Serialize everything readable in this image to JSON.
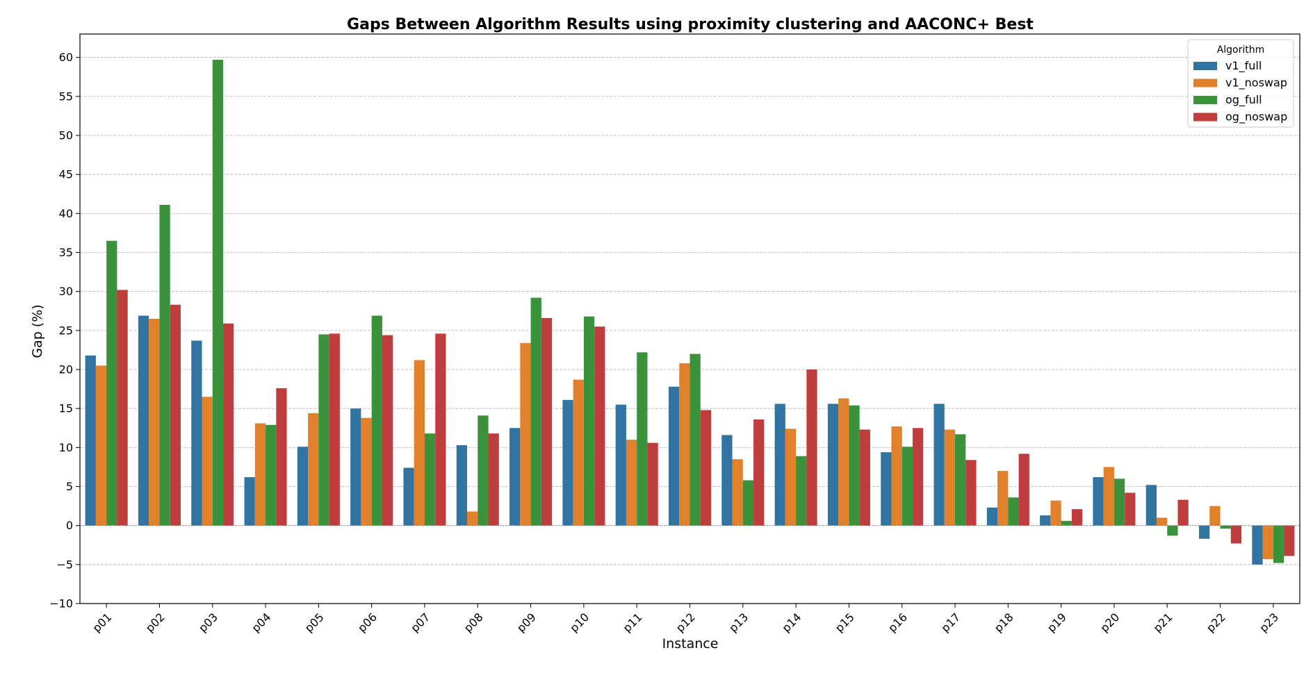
{
  "chart_data": {
    "type": "bar",
    "title": "Gaps Between Algorithm Results using proximity clustering and AACONC+ Best",
    "xlabel": "Instance",
    "ylabel": "Gap (%)",
    "ylim": [
      -10,
      63
    ],
    "yticks": [
      -10,
      -5,
      0,
      5,
      10,
      15,
      20,
      25,
      30,
      35,
      40,
      45,
      50,
      55,
      60
    ],
    "grid": "horizontal-dashed",
    "legend": {
      "title": "Algorithm",
      "placement": "top-right"
    },
    "categories": [
      "p01",
      "p02",
      "p03",
      "p04",
      "p05",
      "p06",
      "p07",
      "p08",
      "p09",
      "p10",
      "p11",
      "p12",
      "p13",
      "p14",
      "p15",
      "p16",
      "p17",
      "p18",
      "p19",
      "p20",
      "p21",
      "p22",
      "p23"
    ],
    "series": [
      {
        "name": "v1_full",
        "color": "#3274a1",
        "values": [
          21.8,
          26.9,
          23.7,
          6.2,
          10.1,
          15.0,
          7.4,
          10.3,
          12.5,
          16.1,
          15.5,
          17.8,
          11.6,
          15.6,
          15.6,
          9.4,
          15.6,
          2.3,
          1.3,
          6.2,
          5.2,
          -1.7,
          -5.0
        ]
      },
      {
        "name": "v1_noswap",
        "color": "#e1812c",
        "values": [
          20.5,
          26.5,
          16.5,
          13.1,
          14.4,
          13.8,
          21.2,
          1.8,
          23.4,
          18.7,
          11.0,
          20.8,
          8.5,
          12.4,
          16.3,
          12.7,
          12.3,
          7.0,
          3.2,
          7.5,
          1.0,
          2.5,
          -4.3
        ]
      },
      {
        "name": "og_full",
        "color": "#3a923a",
        "values": [
          36.5,
          41.1,
          59.7,
          12.9,
          24.5,
          26.9,
          11.8,
          14.1,
          29.2,
          26.8,
          22.2,
          22.0,
          5.8,
          8.9,
          15.4,
          10.1,
          11.7,
          3.6,
          0.6,
          6.0,
          -1.3,
          -0.4,
          -4.8
        ]
      },
      {
        "name": "og_noswap",
        "color": "#c03d3e",
        "values": [
          30.2,
          28.3,
          25.9,
          17.6,
          24.6,
          24.4,
          24.6,
          11.8,
          26.6,
          25.5,
          10.6,
          14.8,
          13.6,
          20.0,
          12.3,
          12.5,
          8.4,
          9.2,
          2.1,
          4.2,
          3.3,
          -2.3,
          -3.9
        ]
      }
    ]
  }
}
